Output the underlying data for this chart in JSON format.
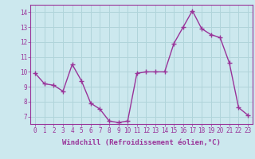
{
  "x": [
    0,
    1,
    2,
    3,
    4,
    5,
    6,
    7,
    8,
    9,
    10,
    11,
    12,
    13,
    14,
    15,
    16,
    17,
    18,
    19,
    20,
    21,
    22,
    23
  ],
  "y": [
    9.9,
    9.2,
    9.1,
    8.7,
    10.5,
    9.4,
    7.9,
    7.5,
    6.7,
    6.6,
    6.7,
    9.9,
    10.0,
    10.0,
    10.0,
    11.9,
    13.0,
    14.1,
    12.9,
    12.5,
    12.3,
    10.6,
    7.6,
    7.1
  ],
  "line_color": "#993399",
  "marker": "+",
  "markersize": 4,
  "linewidth": 1.0,
  "xlabel": "Windchill (Refroidissement éolien,°C)",
  "xlabel_fontsize": 6.5,
  "ytick_labels": [
    "7",
    "8",
    "9",
    "10",
    "11",
    "12",
    "13",
    "14"
  ],
  "ytick_vals": [
    7,
    8,
    9,
    10,
    11,
    12,
    13,
    14
  ],
  "xtick_labels": [
    "0",
    "1",
    "2",
    "3",
    "4",
    "5",
    "6",
    "7",
    "8",
    "9",
    "10",
    "11",
    "12",
    "13",
    "14",
    "15",
    "16",
    "17",
    "18",
    "19",
    "20",
    "21",
    "22",
    "23"
  ],
  "ylim": [
    6.5,
    14.5
  ],
  "xlim": [
    -0.5,
    23.5
  ],
  "bg_color": "#cce8ee",
  "grid_color": "#b0d4da",
  "tick_color": "#993399",
  "tick_fontsize": 5.5
}
